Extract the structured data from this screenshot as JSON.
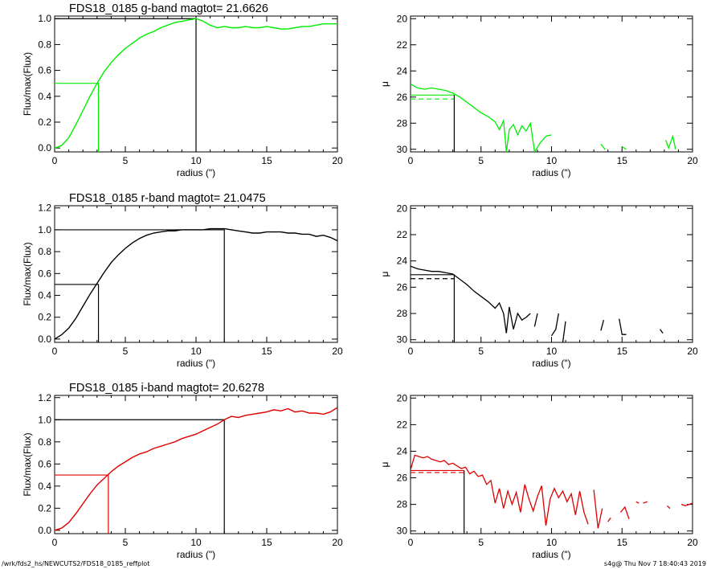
{
  "footer": {
    "path": "/wrk/fds2_hs/NEWCUTS2/FDS18_0185_reffplot",
    "stamp": "s4g@  Thu Nov  7 18:40:43 2019"
  },
  "colors": {
    "g": "#00ee00",
    "r": "#000000",
    "i": "#e00000",
    "marker": "#000000"
  },
  "chart_data": [
    {
      "type": "line",
      "title": "FDS18_0185 g-band  magtot=      21.6626",
      "xlabel": "radius (\")",
      "ylabel": "Flux/max(Flux)",
      "xlim": [
        0,
        20
      ],
      "ylim": [
        -0.03,
        1.02
      ],
      "xticks": [
        "0",
        "5",
        "10",
        "15",
        "20"
      ],
      "yticks": [
        "0.0",
        "0.2",
        "0.4",
        "0.6",
        "0.8",
        "1.0"
      ],
      "color": "#00ee00",
      "half_light": {
        "r": 3.1,
        "f": 0.5
      },
      "max_marker": {
        "r": 10.0,
        "f": 1.0
      },
      "x": [
        0,
        0.5,
        1,
        1.5,
        2,
        2.5,
        3,
        3.5,
        4,
        4.5,
        5,
        5.5,
        6,
        6.5,
        7,
        7.5,
        8,
        8.5,
        9,
        9.5,
        10,
        10.5,
        11,
        11.5,
        12,
        12.5,
        13,
        13.5,
        14,
        14.5,
        15,
        15.5,
        16,
        16.5,
        17,
        17.5,
        18,
        18.5,
        19,
        19.5,
        20
      ],
      "values": [
        0.0,
        0.02,
        0.08,
        0.18,
        0.29,
        0.4,
        0.5,
        0.59,
        0.66,
        0.72,
        0.77,
        0.81,
        0.85,
        0.88,
        0.9,
        0.93,
        0.95,
        0.97,
        0.98,
        0.99,
        1.0,
        0.98,
        0.95,
        0.93,
        0.94,
        0.93,
        0.93,
        0.94,
        0.93,
        0.93,
        0.94,
        0.93,
        0.92,
        0.92,
        0.93,
        0.94,
        0.94,
        0.95,
        0.96,
        0.96,
        0.96
      ]
    },
    {
      "type": "line",
      "title": "",
      "xlabel": "radius (\")",
      "ylabel": "μ",
      "xlim": [
        0,
        20
      ],
      "ylim": [
        30.2,
        19.8
      ],
      "xticks": [
        "0",
        "5",
        "10",
        "15",
        "20"
      ],
      "yticks": [
        "20",
        "22",
        "24",
        "26",
        "28",
        "30"
      ],
      "color": "#00ee00",
      "marker_r": 3.1,
      "marker_mu": 25.85,
      "dash_mu": 26.15,
      "segments": [
        {
          "x": [
            0,
            0.5,
            1,
            1.5,
            2,
            2.5,
            3,
            3.5,
            4,
            4.5,
            5,
            5.5,
            6,
            6.3,
            6.6,
            6.8,
            7,
            7.3,
            7.6,
            7.9,
            8.2,
            8.5,
            8.8,
            9.2,
            9.6,
            10
          ],
          "y": [
            25.0,
            25.3,
            25.4,
            25.3,
            25.4,
            25.5,
            25.7,
            26.0,
            26.4,
            26.8,
            27.2,
            27.5,
            27.9,
            28.5,
            27.8,
            30.2,
            28.5,
            28.1,
            28.9,
            28.2,
            28.6,
            28.0,
            30.2,
            29.5,
            29.0,
            28.9
          ]
        },
        {
          "x": [
            13.5,
            13.8
          ],
          "y": [
            29.6,
            30.0
          ]
        },
        {
          "x": [
            15.0,
            15.3
          ],
          "y": [
            29.8,
            30.0
          ]
        },
        {
          "x": [
            18.1,
            18.3,
            18.6,
            18.8
          ],
          "y": [
            29.3,
            29.9,
            29.0,
            30.0
          ]
        }
      ]
    },
    {
      "type": "line",
      "title": "FDS18_0185 r-band  magtot=      21.0475",
      "xlabel": "radius (\")",
      "ylabel": "Flux/max(Flux)",
      "xlim": [
        0,
        20
      ],
      "ylim": [
        -0.03,
        1.22
      ],
      "xticks": [
        "0",
        "5",
        "10",
        "15",
        "20"
      ],
      "yticks": [
        "0.0",
        "0.2",
        "0.4",
        "0.6",
        "0.8",
        "1.0",
        "1.2"
      ],
      "color": "#000000",
      "half_light": {
        "r": 3.1,
        "f": 0.5
      },
      "max_marker": {
        "r": 12.0,
        "f": 1.0
      },
      "x": [
        0,
        0.5,
        1,
        1.5,
        2,
        2.5,
        3,
        3.5,
        4,
        4.5,
        5,
        5.5,
        6,
        6.5,
        7,
        7.5,
        8,
        8.5,
        9,
        9.5,
        10,
        10.5,
        11,
        11.5,
        12,
        12.5,
        13,
        13.5,
        14,
        14.5,
        15,
        15.5,
        16,
        16.5,
        17,
        17.5,
        18,
        18.5,
        19,
        19.5,
        20
      ],
      "values": [
        0.0,
        0.04,
        0.1,
        0.19,
        0.3,
        0.41,
        0.51,
        0.61,
        0.7,
        0.77,
        0.83,
        0.88,
        0.92,
        0.95,
        0.97,
        0.98,
        0.99,
        0.99,
        1.0,
        1.0,
        1.0,
        1.0,
        1.01,
        1.01,
        1.01,
        1.0,
        0.99,
        0.98,
        0.97,
        0.97,
        0.98,
        0.98,
        0.98,
        0.97,
        0.97,
        0.96,
        0.96,
        0.94,
        0.95,
        0.93,
        0.9
      ]
    },
    {
      "type": "line",
      "title": "",
      "xlabel": "radius (\")",
      "ylabel": "μ",
      "xlim": [
        0,
        20
      ],
      "ylim": [
        30.2,
        19.8
      ],
      "xticks": [
        "0",
        "5",
        "10",
        "15",
        "20"
      ],
      "yticks": [
        "20",
        "22",
        "24",
        "26",
        "28",
        "30"
      ],
      "color": "#000000",
      "marker_r": 3.1,
      "marker_mu": 25.05,
      "dash_mu": 25.35,
      "segments": [
        {
          "x": [
            0,
            0.5,
            1,
            1.5,
            2,
            2.5,
            3,
            3.5,
            4,
            4.5,
            5,
            5.5,
            6,
            6.3,
            6.6,
            6.8,
            7,
            7.3,
            7.6,
            7.9,
            8.2,
            8.5
          ],
          "y": [
            24.4,
            24.6,
            24.7,
            24.8,
            24.8,
            24.9,
            25.0,
            25.4,
            25.8,
            26.3,
            26.7,
            27.1,
            27.6,
            27.2,
            28.0,
            29.5,
            27.5,
            29.2,
            28.0,
            28.5,
            28.3,
            28.0
          ]
        },
        {
          "x": [
            8.8,
            9.0
          ],
          "y": [
            29.0,
            28.0
          ]
        },
        {
          "x": [
            10.0,
            10.3,
            10.5
          ],
          "y": [
            29.7,
            29.2,
            28.0
          ]
        },
        {
          "x": [
            10.8,
            11.0
          ],
          "y": [
            30.2,
            28.6
          ]
        },
        {
          "x": [
            13.5,
            13.7
          ],
          "y": [
            29.3,
            28.5
          ]
        },
        {
          "x": [
            14.8,
            15.0,
            15.3
          ],
          "y": [
            28.4,
            29.6,
            29.6
          ]
        },
        {
          "x": [
            17.7,
            17.9
          ],
          "y": [
            29.2,
            29.5
          ]
        }
      ]
    },
    {
      "type": "line",
      "title": "FDS18_0185 i-band  magtot=      20.6278",
      "xlabel": "radius (\")",
      "ylabel": "Flux/max(Flux)",
      "xlim": [
        0,
        20
      ],
      "ylim": [
        -0.03,
        1.22
      ],
      "xticks": [
        "0",
        "5",
        "10",
        "15",
        "20"
      ],
      "yticks": [
        "0.0",
        "0.2",
        "0.4",
        "0.6",
        "0.8",
        "1.0",
        "1.2"
      ],
      "color": "#e00000",
      "half_light": {
        "r": 3.8,
        "f": 0.5
      },
      "max_marker": {
        "r": 12.0,
        "f": 1.0
      },
      "x": [
        0,
        0.5,
        1,
        1.5,
        2,
        2.5,
        3,
        3.5,
        4,
        4.5,
        5,
        5.5,
        6,
        6.5,
        7,
        7.5,
        8,
        8.5,
        9,
        9.5,
        10,
        10.5,
        11,
        11.5,
        12,
        12.5,
        13,
        13.5,
        14,
        14.5,
        15,
        15.5,
        16,
        16.5,
        17,
        17.5,
        18,
        18.5,
        19,
        19.5,
        20
      ],
      "values": [
        0.0,
        0.02,
        0.07,
        0.15,
        0.24,
        0.33,
        0.41,
        0.47,
        0.53,
        0.58,
        0.62,
        0.66,
        0.69,
        0.71,
        0.74,
        0.76,
        0.78,
        0.8,
        0.83,
        0.85,
        0.87,
        0.9,
        0.93,
        0.96,
        1.0,
        1.03,
        1.02,
        1.04,
        1.05,
        1.06,
        1.07,
        1.09,
        1.08,
        1.1,
        1.07,
        1.08,
        1.06,
        1.06,
        1.05,
        1.07,
        1.11
      ]
    },
    {
      "type": "line",
      "title": "",
      "xlabel": "radius (\")",
      "ylabel": "μ",
      "xlim": [
        0,
        20
      ],
      "ylim": [
        30.2,
        19.8
      ],
      "xticks": [
        "0",
        "5",
        "10",
        "15",
        "20"
      ],
      "yticks": [
        "20",
        "22",
        "24",
        "26",
        "28",
        "30"
      ],
      "color": "#e00000",
      "marker_r": 3.8,
      "marker_mu": 25.45,
      "dash_mu": 25.6,
      "segments": [
        {
          "x": [
            0,
            0.3,
            0.6,
            0.9,
            1.2,
            1.5,
            1.8,
            2.1,
            2.4,
            2.7,
            3.0,
            3.3,
            3.6,
            3.9,
            4.2,
            4.5,
            4.8,
            5.1,
            5.4,
            5.7,
            6.0,
            6.3,
            6.6,
            6.9,
            7.2,
            7.5,
            7.8,
            8.1,
            8.4,
            8.7,
            9.0,
            9.3,
            9.6,
            9.9,
            10.2,
            10.5,
            10.8,
            11.1,
            11.4,
            11.7,
            12.0,
            12.3,
            12.6
          ],
          "y": [
            25.4,
            24.3,
            24.4,
            24.5,
            24.4,
            24.6,
            24.7,
            24.8,
            24.7,
            25.0,
            24.9,
            25.1,
            25.3,
            25.2,
            25.7,
            25.5,
            25.9,
            25.8,
            26.5,
            26.2,
            27.9,
            26.8,
            28.3,
            27.0,
            28.0,
            27.1,
            28.6,
            26.5,
            27.6,
            28.5,
            27.4,
            26.6,
            29.6,
            27.6,
            26.8,
            27.5,
            27.0,
            27.8,
            27.2,
            28.8,
            27.0,
            28.6,
            29.5
          ]
        },
        {
          "x": [
            13.0,
            13.3,
            13.6
          ],
          "y": [
            26.9,
            29.8,
            28.3
          ]
        },
        {
          "x": [
            14.0,
            14.2
          ],
          "y": [
            29.3,
            29.0
          ]
        },
        {
          "x": [
            14.9,
            15.2,
            15.5
          ],
          "y": [
            28.6,
            28.2,
            29.1
          ]
        },
        {
          "x": [
            16.0,
            16.2
          ],
          "y": [
            27.8,
            27.9
          ]
        },
        {
          "x": [
            16.5,
            16.8
          ],
          "y": [
            27.9,
            27.8
          ]
        },
        {
          "x": [
            18.2,
            18.4
          ],
          "y": [
            28.1,
            28.3
          ]
        },
        {
          "x": [
            19.2,
            19.5,
            20.0
          ],
          "y": [
            28.0,
            28.1,
            27.9
          ]
        }
      ]
    }
  ]
}
